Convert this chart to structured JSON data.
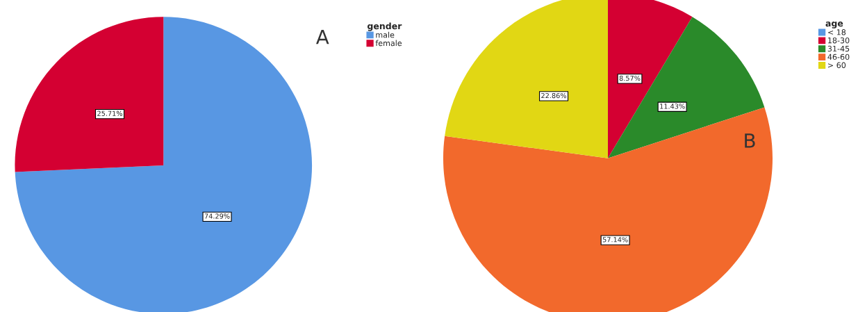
{
  "chart_data": [
    {
      "type": "pie",
      "title": "A",
      "legend_title": "gender",
      "legend": "top right",
      "categories": [
        "male",
        "female"
      ],
      "values": [
        74.29,
        25.71
      ],
      "value_labels": [
        "74.29%",
        "25.71%"
      ],
      "colors": [
        "#5897e3",
        "#d40032"
      ]
    },
    {
      "type": "pie",
      "title": "B",
      "legend_title": "age",
      "legend": "top right",
      "categories": [
        "< 18",
        "18-30",
        "31-45",
        "46-60",
        "> 60"
      ],
      "values": [
        0,
        8.57,
        11.43,
        57.14,
        22.86
      ],
      "value_labels": [
        null,
        "8.57%",
        "11.43%",
        "57.14%",
        "22.86%"
      ],
      "colors": [
        "#5897e3",
        "#d40032",
        "#2a8a2a",
        "#f2692c",
        "#e1d714"
      ]
    }
  ]
}
